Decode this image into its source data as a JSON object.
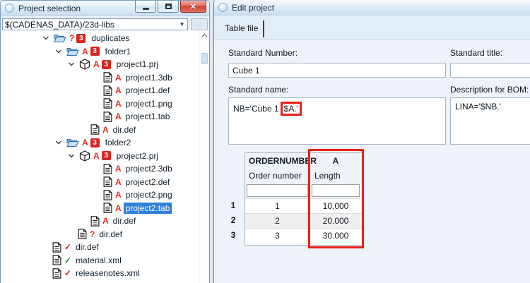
{
  "glyphs": {
    "close": "✕",
    "dropdown_arrow": "▼",
    "check": "✓",
    "ellipsis": "..."
  },
  "colors": {
    "annotation_red": "#ea1f18",
    "selection_blue": "#2e80d9",
    "error_red": "#e02b20",
    "check_green": "#2e8b2e",
    "check_red": "#cc1f1f",
    "badge_red": "#d6261d"
  },
  "left_window": {
    "title": "Project selection",
    "window_controls": [
      "minimize",
      "maximize",
      "close"
    ],
    "path_value": "$(CADENAS_DATA)/23d-libs",
    "browse_label": "...",
    "tree": [
      {
        "label": "duplicates",
        "depth": 1,
        "expandable": true,
        "icon": "folder",
        "mark": "?",
        "badge": "3"
      },
      {
        "label": "folder1",
        "depth": 2,
        "expandable": true,
        "icon": "folder",
        "mark": "A",
        "badge": "3"
      },
      {
        "label": "project1.prj",
        "depth": 3,
        "expandable": true,
        "icon": "cube",
        "mark": "A",
        "badge": "3"
      },
      {
        "label": "project1.3db",
        "depth": 5,
        "expandable": false,
        "icon": "doc",
        "mark": "A"
      },
      {
        "label": "project1.def",
        "depth": 5,
        "expandable": false,
        "icon": "doc",
        "mark": "A"
      },
      {
        "label": "project1.png",
        "depth": 5,
        "expandable": false,
        "icon": "doc",
        "mark": "A"
      },
      {
        "label": "project1.tab",
        "depth": 5,
        "expandable": false,
        "icon": "doc",
        "mark": "A"
      },
      {
        "label": "dir.def",
        "depth": 4,
        "expandable": false,
        "icon": "doc",
        "mark": "A"
      },
      {
        "label": "folder2",
        "depth": 2,
        "expandable": true,
        "icon": "folder",
        "mark": "A",
        "badge": "3"
      },
      {
        "label": "project2.prj",
        "depth": 3,
        "expandable": true,
        "icon": "cube",
        "mark": "A",
        "badge": "3"
      },
      {
        "label": "project2.3db",
        "depth": 5,
        "expandable": false,
        "icon": "doc",
        "mark": "A"
      },
      {
        "label": "project2.def",
        "depth": 5,
        "expandable": false,
        "icon": "doc",
        "mark": "A"
      },
      {
        "label": "project2.png",
        "depth": 5,
        "expandable": false,
        "icon": "doc",
        "mark": "A"
      },
      {
        "label": "project2.tab",
        "depth": 5,
        "expandable": false,
        "icon": "doc",
        "mark": "A",
        "selected": true
      },
      {
        "label": "dir.def",
        "depth": 4,
        "expandable": false,
        "icon": "doc",
        "mark": "A"
      },
      {
        "label": "dir.def",
        "depth": 3,
        "expandable": false,
        "icon": "doc",
        "mark": "?"
      },
      {
        "label": "dir.def",
        "depth": 1,
        "expandable": false,
        "icon": "doc",
        "mark": "check-red"
      },
      {
        "label": "material.xml",
        "depth": 1,
        "expandable": false,
        "icon": "doc",
        "mark": "check-green"
      },
      {
        "label": "releasenotes.xml",
        "depth": 1,
        "expandable": false,
        "icon": "doc",
        "mark": "check-red"
      }
    ]
  },
  "edit_window": {
    "title": "Edit project",
    "tabs": [
      {
        "label": "Table file",
        "active": true
      }
    ],
    "fields": {
      "standard_number_label": "Standard Number:",
      "standard_number_value": "Cube 1",
      "standard_title_label": "Standard title:",
      "standard_title_value": "",
      "standard_name_label": "Standard name:",
      "standard_name_prefix": "NB='Cube 1",
      "standard_name_highlight": "$A.'",
      "description_bom_label": "Description for BOM:",
      "description_bom_value": "LINA='$NB.'"
    },
    "table": {
      "columns": [
        {
          "name": "ORDERNUMBER",
          "description": "Order number",
          "highlighted": false
        },
        {
          "name": "A",
          "description": "Length",
          "highlighted": true
        }
      ],
      "filter_values": [
        "",
        ""
      ],
      "rows": [
        {
          "num": "1",
          "values": [
            "1",
            "10.000"
          ]
        },
        {
          "num": "2",
          "values": [
            "2",
            "20.000"
          ]
        },
        {
          "num": "3",
          "values": [
            "3",
            "30.000"
          ]
        }
      ]
    }
  }
}
